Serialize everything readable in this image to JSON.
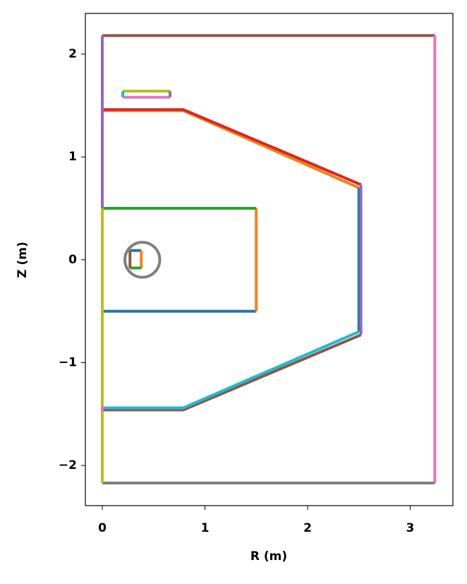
{
  "chart_data": {
    "type": "line",
    "xlabel": "R (m)",
    "ylabel": "Z (m)",
    "xlim": [
      -0.165,
      3.416
    ],
    "ylim": [
      -2.39,
      2.395
    ],
    "xticks": [
      0,
      1,
      2,
      3
    ],
    "yticks": [
      {
        "value": -2,
        "label": "−2"
      },
      {
        "value": -1,
        "label": "−1"
      },
      0,
      1,
      2
    ],
    "series": [
      {
        "color": "#1f77b4",
        "x": [
          0,
          1.5
        ],
        "y": [
          -0.5,
          -0.5
        ]
      },
      {
        "color": "#ff7f0e",
        "x": [
          1.5,
          1.5
        ],
        "y": [
          -0.5,
          0.5
        ]
      },
      {
        "color": "#2ca02c",
        "x": [
          0,
          1.5
        ],
        "y": [
          0.5,
          0.5
        ]
      },
      {
        "color": "#1f77b4",
        "x": [
          0.27,
          0.38
        ],
        "y": [
          0.09,
          0.09
        ]
      },
      {
        "color": "#ff7f0e",
        "x": [
          0.38,
          0.38
        ],
        "y": [
          0.09,
          -0.08
        ]
      },
      {
        "color": "#2ca02c",
        "x": [
          0.27,
          0.38
        ],
        "y": [
          -0.08,
          -0.08
        ]
      },
      {
        "color": "#8c564b",
        "x": [
          0.27,
          0.27
        ],
        "y": [
          -0.08,
          0.09
        ]
      },
      {
        "color": "#ff7f0e",
        "x": [
          0,
          0.79,
          2.5
        ],
        "y": [
          1.45,
          1.45,
          0.7
        ]
      },
      {
        "color": "#d62728",
        "x": [
          0,
          0.79,
          2.52
        ],
        "y": [
          1.46,
          1.46,
          0.73
        ]
      },
      {
        "color": "#1f77b4",
        "x": [
          2.5,
          2.5
        ],
        "y": [
          0.7,
          -0.7
        ]
      },
      {
        "color": "#9467bd",
        "x": [
          2.52,
          2.52
        ],
        "y": [
          0.73,
          -0.73
        ]
      },
      {
        "color": "#8c564b",
        "x": [
          2.52,
          0.79,
          0
        ],
        "y": [
          -0.73,
          -1.46,
          -1.46
        ]
      },
      {
        "color": "#17becf",
        "x": [
          2.5,
          0.79,
          0
        ],
        "y": [
          -0.7,
          -1.44,
          -1.44
        ]
      },
      {
        "color": "#8c564b",
        "x": [
          0,
          3.24
        ],
        "y": [
          2.18,
          2.18
        ]
      },
      {
        "color": "#e377c2",
        "x": [
          3.24,
          3.24
        ],
        "y": [
          2.18,
          -2.17
        ]
      },
      {
        "color": "#7f7f7f",
        "x": [
          0,
          3.24
        ],
        "y": [
          -2.17,
          -2.17
        ]
      },
      {
        "color": "#bcbd22",
        "x": [
          0,
          0
        ],
        "y": [
          -2.17,
          0.5
        ]
      },
      {
        "color": "#9467bd",
        "x": [
          0,
          0
        ],
        "y": [
          0.5,
          2.18
        ]
      },
      {
        "color": "#e377c2",
        "x": [
          0,
          0
        ],
        "y": [
          -1.42,
          -1.48
        ]
      },
      {
        "color": "#bcbd22",
        "x": [
          0.2,
          0.66
        ],
        "y": [
          1.64,
          1.64
        ]
      },
      {
        "color": "#e377c2",
        "x": [
          0.2,
          0.66
        ],
        "y": [
          1.58,
          1.58
        ]
      },
      {
        "color": "#17becf",
        "x": [
          0.2,
          0.2
        ],
        "y": [
          1.58,
          1.64
        ]
      },
      {
        "color": "#7f7f7f",
        "x": [
          0.66,
          0.66
        ],
        "y": [
          1.58,
          1.64
        ]
      }
    ],
    "circles": [
      {
        "color": "#7f7f7f",
        "x": 0.39,
        "y": 0,
        "r": 0.17
      }
    ]
  }
}
